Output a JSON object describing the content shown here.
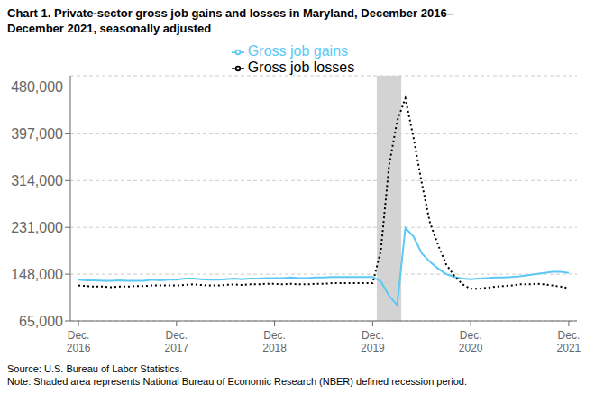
{
  "chart_data": {
    "type": "line",
    "title": "Chart 1. Private-sector gross job gains and losses in Maryland, December 2016–",
    "subtitle": "December 2021, seasonally adjusted",
    "annotations": [
      {
        "text": "Source: U.S. Bureau of Labor Statistics."
      },
      {
        "text": "Note: Shaded area represents National Bureau of Economic Research (NBER) defined  recession period."
      }
    ],
    "shaded": {
      "from": 36.5,
      "to": 39.5,
      "color": "#d3d3d3"
    },
    "categories": [
      "Dec.\n2016",
      null,
      null,
      null,
      null,
      null,
      null,
      null,
      null,
      null,
      null,
      null,
      "Dec.\n2017",
      null,
      null,
      null,
      null,
      null,
      null,
      null,
      null,
      null,
      null,
      null,
      "Dec.\n2018",
      null,
      null,
      null,
      null,
      null,
      null,
      null,
      null,
      null,
      null,
      null,
      "Dec.\n2019",
      null,
      null,
      null,
      null,
      null,
      null,
      null,
      null,
      null,
      null,
      null,
      "Dec.\n2020",
      null,
      null,
      null,
      null,
      null,
      null,
      null,
      null,
      null,
      null,
      null,
      "Dec.\n2021"
    ],
    "xlim": [
      -1,
      61
    ],
    "ylim": [
      65000,
      500000
    ],
    "yticks": [
      {
        "value": 65000,
        "label": "65,000"
      },
      {
        "value": 148000,
        "label": "148,000"
      },
      {
        "value": 231000,
        "label": "231,000"
      },
      {
        "value": 314000,
        "label": "314,000"
      },
      {
        "value": 397000,
        "label": "397,000"
      },
      {
        "value": 480000,
        "label": "480,000"
      }
    ],
    "grid": true,
    "legend": "top",
    "series": [
      {
        "name": "Gross job gains",
        "color": "#5bc8f5",
        "line_style": "solid",
        "values": [
          138000,
          137000,
          137000,
          136000,
          136000,
          137000,
          136000,
          136000,
          136000,
          138000,
          137000,
          138000,
          138000,
          140000,
          140000,
          139000,
          138000,
          138000,
          139000,
          140000,
          139000,
          140000,
          140000,
          141000,
          141000,
          141000,
          142000,
          141000,
          141000,
          142000,
          142000,
          143000,
          143000,
          143000,
          143000,
          143000,
          143000,
          135000,
          110000,
          93000,
          230000,
          215000,
          185000,
          170000,
          158000,
          148000,
          143000,
          140000,
          139000,
          140000,
          141000,
          142000,
          142000,
          143000,
          144000,
          146000,
          148000,
          150000,
          152000,
          152000,
          150000
        ]
      },
      {
        "name": "Gross job losses",
        "color": "#000000",
        "line_style": "dotted",
        "values": [
          128000,
          127000,
          126000,
          126000,
          125000,
          126000,
          126000,
          127000,
          127000,
          128000,
          128000,
          128000,
          128000,
          129000,
          130000,
          129000,
          128000,
          128000,
          129000,
          130000,
          129000,
          130000,
          130000,
          131000,
          131000,
          130000,
          131000,
          130000,
          130000,
          131000,
          131000,
          132000,
          132000,
          132000,
          132000,
          132000,
          132000,
          190000,
          340000,
          420000,
          460000,
          390000,
          310000,
          240000,
          200000,
          165000,
          145000,
          130000,
          122000,
          122000,
          124000,
          126000,
          127000,
          128000,
          130000,
          130000,
          131000,
          130000,
          128000,
          126000,
          123000
        ]
      }
    ]
  }
}
